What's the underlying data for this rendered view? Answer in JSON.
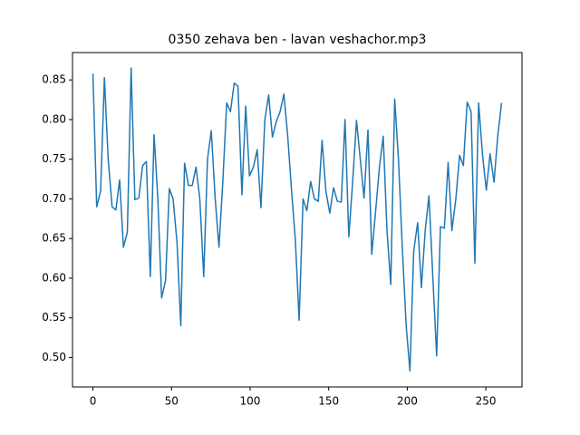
{
  "chart_data": {
    "type": "line",
    "title": "0350 zehava ben - lavan veshachor.mp3",
    "x": [
      0,
      2.4,
      4.9,
      7.3,
      9.7,
      12.2,
      14.6,
      17.0,
      19.4,
      21.9,
      24.3,
      26.7,
      29.2,
      31.6,
      34.0,
      36.5,
      38.9,
      41.3,
      43.7,
      46.2,
      48.6,
      51.0,
      53.5,
      55.9,
      58.3,
      60.8,
      63.2,
      65.6,
      68.0,
      70.5,
      72.9,
      75.3,
      77.8,
      80.2,
      82.6,
      85.1,
      87.5,
      89.9,
      92.3,
      94.8,
      97.2,
      99.6,
      102.1,
      104.5,
      106.9,
      109.4,
      111.8,
      114.2,
      116.6,
      119.1,
      121.5,
      123.9,
      126.4,
      128.8,
      131.2,
      133.7,
      136.1,
      138.5,
      140.9,
      143.4,
      145.8,
      148.2,
      150.7,
      153.1,
      155.5,
      158.0,
      160.4,
      162.8,
      165.2,
      167.7,
      170.1,
      172.5,
      175.0,
      177.4,
      179.8,
      182.3,
      184.7,
      187.1,
      189.5,
      192.0,
      194.4,
      196.8,
      199.3,
      201.7,
      204.1,
      206.6,
      209.0,
      211.4,
      213.8,
      216.3,
      218.7,
      221.1,
      223.6,
      226.0,
      228.4,
      230.9,
      233.3,
      235.7,
      238.1,
      240.6,
      243.0,
      245.4,
      247.9,
      250.3,
      252.7,
      255.2,
      257.6,
      260.0
    ],
    "series": [
      {
        "color": "#1f77b4",
        "values": [
          0.858,
          0.69,
          0.71,
          0.853,
          0.75,
          0.69,
          0.686,
          0.724,
          0.639,
          0.658,
          0.865,
          0.699,
          0.701,
          0.742,
          0.747,
          0.602,
          0.781,
          0.7,
          0.575,
          0.597,
          0.713,
          0.7,
          0.645,
          0.54,
          0.745,
          0.717,
          0.717,
          0.74,
          0.7,
          0.602,
          0.75,
          0.786,
          0.7,
          0.639,
          0.72,
          0.821,
          0.81,
          0.846,
          0.842,
          0.705,
          0.817,
          0.729,
          0.74,
          0.762,
          0.689,
          0.8,
          0.831,
          0.778,
          0.797,
          0.81,
          0.832,
          0.78,
          0.71,
          0.648,
          0.547,
          0.7,
          0.685,
          0.722,
          0.7,
          0.697,
          0.774,
          0.71,
          0.682,
          0.714,
          0.697,
          0.696,
          0.8,
          0.652,
          0.72,
          0.799,
          0.75,
          0.701,
          0.787,
          0.63,
          0.683,
          0.74,
          0.779,
          0.66,
          0.592,
          0.826,
          0.75,
          0.64,
          0.54,
          0.483,
          0.634,
          0.67,
          0.588,
          0.66,
          0.704,
          0.6,
          0.502,
          0.665,
          0.663,
          0.746,
          0.66,
          0.7,
          0.755,
          0.742,
          0.822,
          0.81,
          0.619,
          0.821,
          0.755,
          0.711,
          0.757,
          0.721,
          0.78,
          0.821
        ]
      }
    ],
    "xlim": [
      -13,
      273
    ],
    "xticks": [
      0,
      50,
      100,
      150,
      200,
      250
    ],
    "ylim": [
      0.4628,
      0.8845
    ],
    "yticks": [
      {
        "value": 0.5,
        "label": "0.50"
      },
      {
        "value": 0.55,
        "label": "0.55"
      },
      {
        "value": 0.6,
        "label": "0.60"
      },
      {
        "value": 0.65,
        "label": "0.65"
      },
      {
        "value": 0.7,
        "label": "0.70"
      },
      {
        "value": 0.75,
        "label": "0.75"
      },
      {
        "value": 0.8,
        "label": "0.80"
      },
      {
        "value": 0.85,
        "label": "0.85"
      }
    ]
  }
}
